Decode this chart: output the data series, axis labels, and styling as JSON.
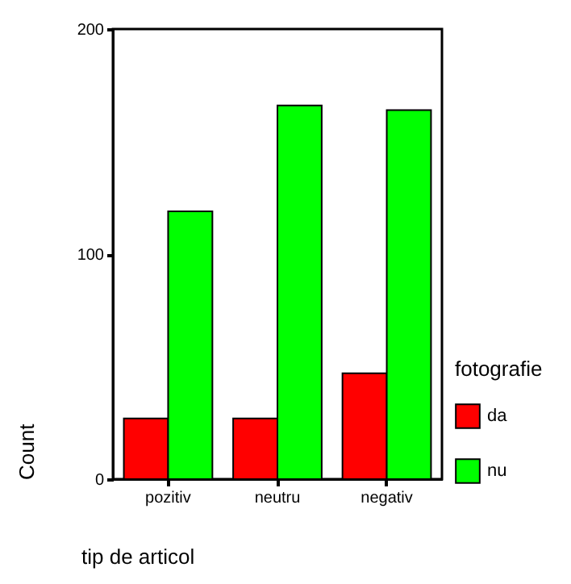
{
  "chart_data": {
    "type": "bar",
    "xlabel": "tip de articol",
    "ylabel": "Count",
    "legend_title": "fotografie",
    "categories": [
      "pozitiv",
      "neutru",
      "negativ"
    ],
    "series": [
      {
        "name": "da",
        "color": "#ff0000",
        "values": [
          27,
          27,
          47
        ]
      },
      {
        "name": "nu",
        "color": "#00ff00",
        "values": [
          119,
          166,
          164
        ]
      }
    ],
    "ylim": [
      0,
      200
    ],
    "yticks": [
      0,
      100,
      200
    ],
    "grid": false,
    "legend": "right"
  }
}
